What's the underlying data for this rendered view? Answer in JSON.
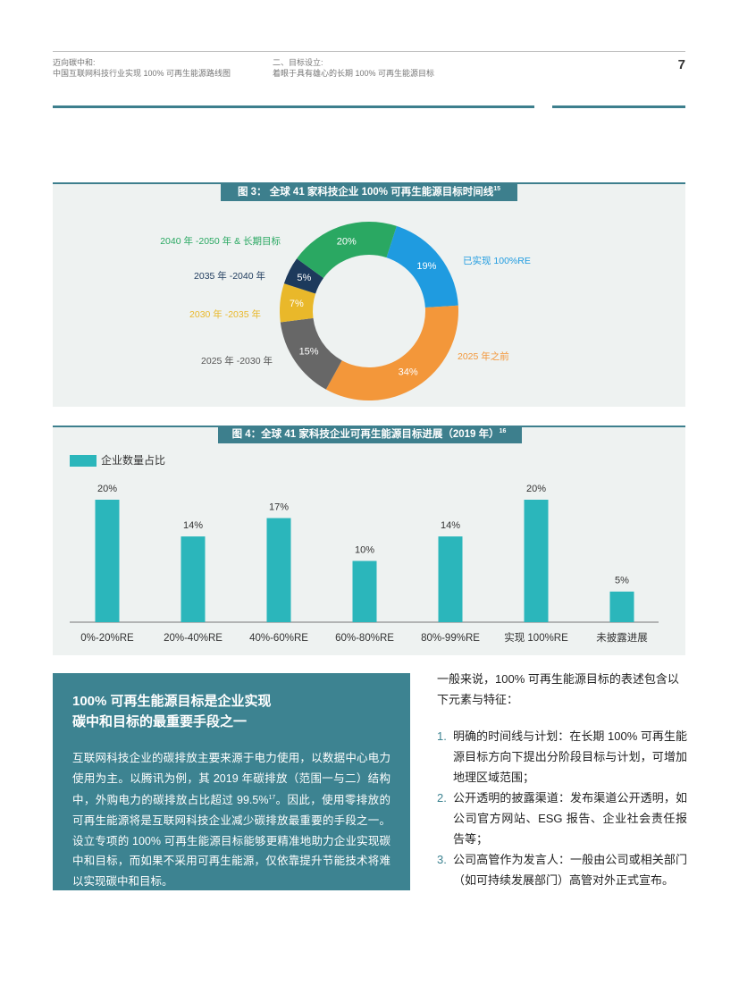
{
  "header": {
    "left": [
      "迈向碳中和:",
      "中国互联网科技行业实现 100% 可再生能源路线图"
    ],
    "middle": [
      "二、目标设立:",
      "着眼于具有雄心的长期 100% 可再生能源目标"
    ],
    "page": "7"
  },
  "chart_data": [
    {
      "type": "pie",
      "title": "图 3： 全球 41 家科技企业 100% 可再生能源目标时间线",
      "title_note": "15",
      "categories": [
        "已实现 100%RE",
        "2025 年之前",
        "2025 年 -2030 年",
        "2030 年 -2035 年",
        "2035 年 -2040 年",
        "2040 年 -2050 年 & 长期目标"
      ],
      "values": [
        19,
        34,
        15,
        7,
        5,
        20
      ],
      "value_labels": [
        "19%",
        "34%",
        "15%",
        "7%",
        "5%",
        "20%"
      ],
      "colors": [
        "#1f9be0",
        "#f3973a",
        "#676767",
        "#e9b82a",
        "#1d3a5c",
        "#2aa862"
      ]
    },
    {
      "type": "bar",
      "title": "图 4：全球 41 家科技企业可再生能源目标进展（2019 年）",
      "title_note": "16",
      "categories": [
        "0%-20%RE",
        "20%-40%RE",
        "40%-60%RE",
        "60%-80%RE",
        "80%-99%RE",
        "实现 100%RE",
        "未披露进展"
      ],
      "series": [
        {
          "name": "企业数量占比",
          "color": "#2bb6bb",
          "values": [
            20,
            14,
            17,
            10,
            14,
            20,
            5
          ],
          "value_labels": [
            "20%",
            "14%",
            "17%",
            "10%",
            "14%",
            "20%",
            "5%"
          ]
        }
      ],
      "ylim": [
        0,
        20
      ]
    }
  ],
  "box": {
    "title": [
      "100% 可再生能源目标是企业实现",
      "碳中和目标的最重要手段之一"
    ],
    "paragraph": [
      "互联网科技企业的碳排放主要来源于电力使用，以数据中心电力使用为主。以腾讯为例，其 2019 年碳排放（范围一与二）结构中，外购电力的碳排放占比超过 99.5%",
      "17",
      "。因此，使用零排放的可再生能源将是互联网科技企业减少碳排放最重要的手段之一。设立专项的 100% 可再生能源目标能够更精准地助力企业实现碳中和目标，而如果不采用可再生能源，仅依靠提升节能技术将难以实现碳中和目标。"
    ]
  },
  "intro": "一般来说，100% 可再生能源目标的表述包含以下元素与特征：",
  "list": [
    {
      "number": "1.",
      "text": "明确的时间线与计划：在长期 100% 可再生能源目标方向下提出分阶段目标与计划，可增加地理区域范围；"
    },
    {
      "number": "2.",
      "text": "公开透明的披露渠道：发布渠道公开透明，如公司官方网站、ESG 报告、企业社会责任报告等；"
    },
    {
      "number": "3.",
      "text": "公司高管作为发言人：一般由公司或相关部门（如可持续发展部门）高管对外正式宣布。"
    }
  ]
}
